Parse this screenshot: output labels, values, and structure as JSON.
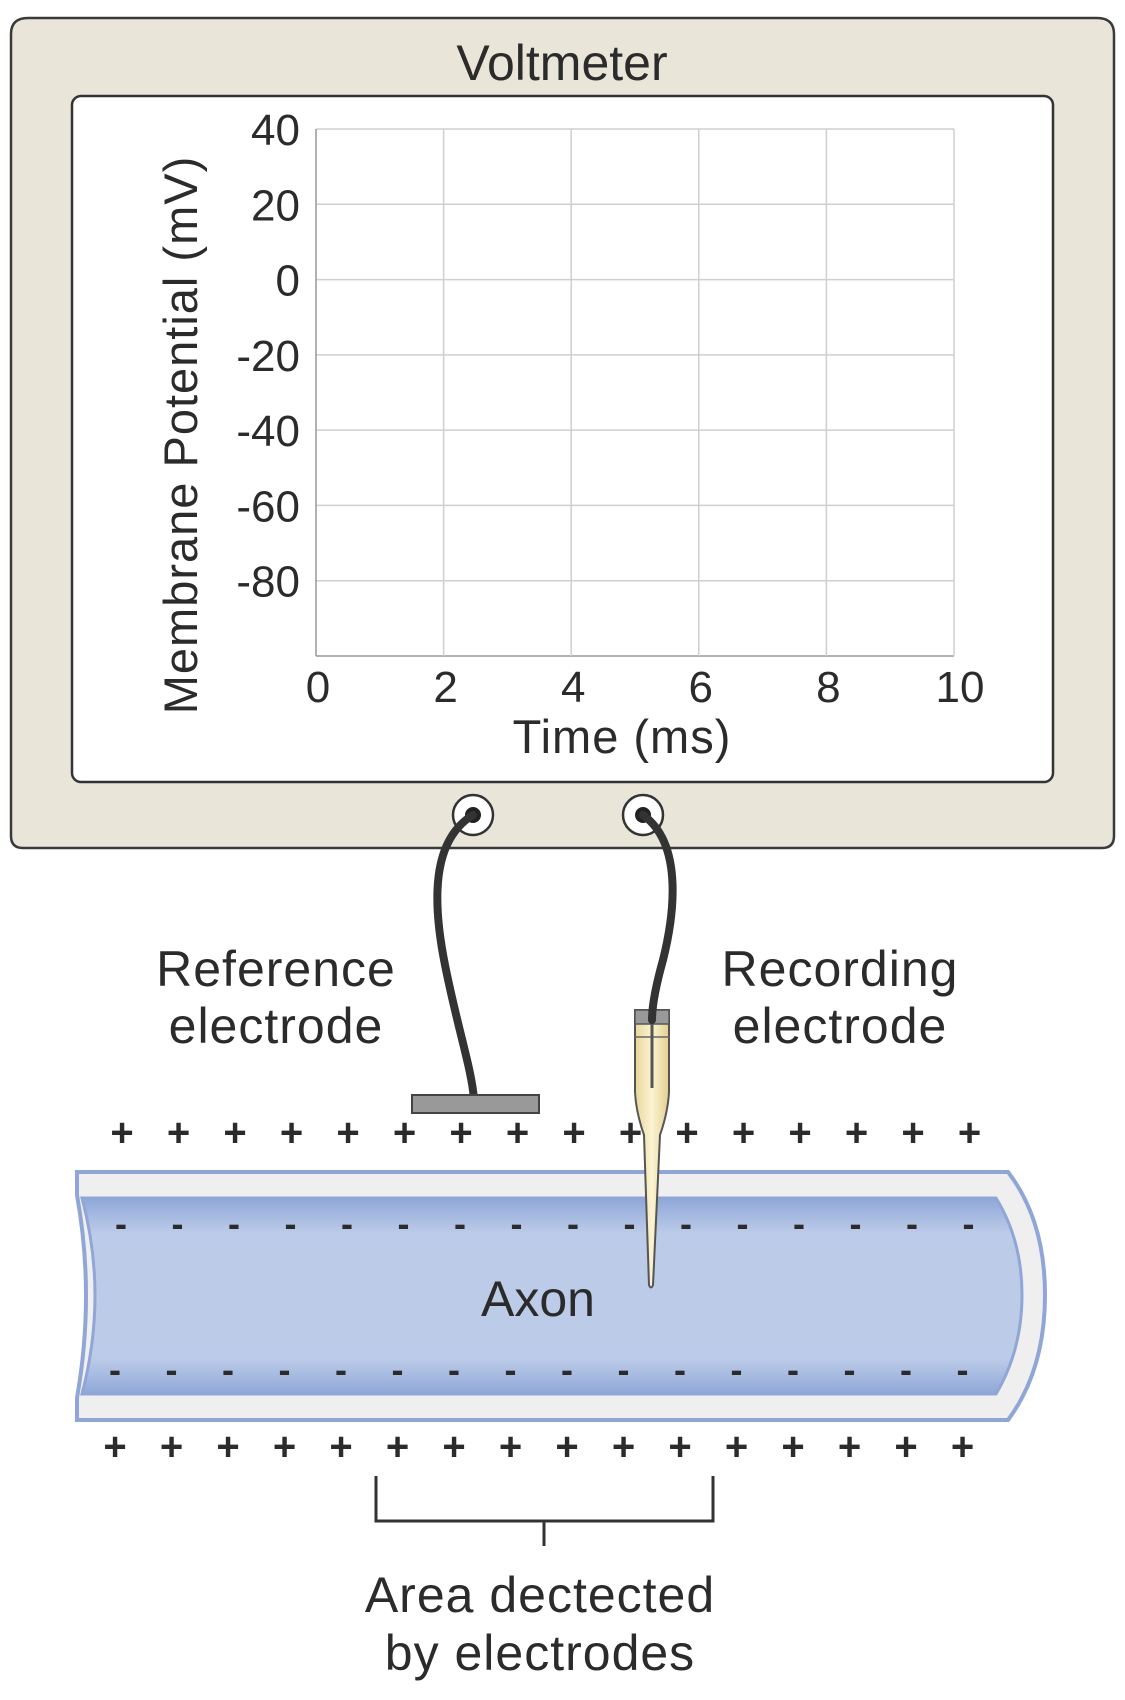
{
  "voltmeter": {
    "title": "Voltmeter"
  },
  "chart_data": {
    "type": "line",
    "title": "",
    "xlabel": "Time (ms)",
    "ylabel": "Membrane Potential (mV)",
    "x_ticks": [
      0,
      2,
      4,
      6,
      8,
      10
    ],
    "y_ticks": [
      40,
      20,
      0,
      -20,
      -40,
      -60,
      -80
    ],
    "xlim": [
      0,
      10
    ],
    "ylim": [
      -100,
      40
    ],
    "grid": true,
    "series": []
  },
  "labels": {
    "reference_line1": "Reference",
    "reference_line2": "electrode",
    "recording_line1": "Recording",
    "recording_line2": "electrode",
    "axon": "Axon",
    "area_line1": "Area dectected",
    "area_line2": "by electrodes"
  },
  "charges": {
    "outside": "+",
    "inside": "-",
    "count": 16
  },
  "colors": {
    "case": "#e9e5d9",
    "case_border": "#3a3a3a",
    "axon_fill": "#b9c8e6",
    "axon_border": "#90a6d6",
    "membrane": "#efefef",
    "electrode_tip": "#f3e6b3",
    "wire": "#333333",
    "grid": "#cfcfcf"
  }
}
